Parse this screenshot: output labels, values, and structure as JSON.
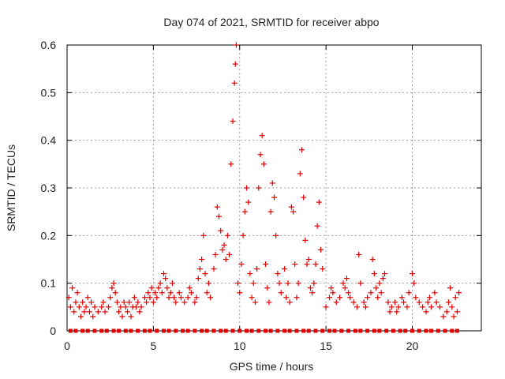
{
  "chart_data": {
    "type": "scatter",
    "title": "Day 074 of 2021, SRMTID for receiver abpo",
    "xlabel": "GPS time / hours",
    "ylabel": "SRMTID / TECUs",
    "xlim": [
      0,
      24
    ],
    "ylim": [
      0,
      0.6
    ],
    "xticks": [
      "0",
      "5",
      "10",
      "15",
      "20"
    ],
    "yticks": [
      "0",
      "0.1",
      "0.2",
      "0.3",
      "0.4",
      "0.5",
      "0.6"
    ],
    "grid": true,
    "marker": "+",
    "color": "#e00000",
    "series": [
      {
        "name": "SRMTID",
        "points": [
          [
            0.1,
            0.07
          ],
          [
            0.2,
            0.05
          ],
          [
            0.3,
            0.09
          ],
          [
            0.4,
            0.04
          ],
          [
            0.5,
            0.06
          ],
          [
            0.6,
            0.08
          ],
          [
            0.7,
            0.05
          ],
          [
            0.8,
            0.03
          ],
          [
            0.9,
            0.06
          ],
          [
            1.0,
            0.04
          ],
          [
            1.1,
            0.05
          ],
          [
            1.2,
            0.07
          ],
          [
            1.3,
            0.04
          ],
          [
            1.4,
            0.06
          ],
          [
            1.5,
            0.03
          ],
          [
            1.6,
            0.05
          ],
          [
            1.8,
            0.04
          ],
          [
            2.0,
            0.05
          ],
          [
            2.1,
            0.06
          ],
          [
            2.2,
            0.04
          ],
          [
            2.4,
            0.05
          ],
          [
            2.5,
            0.07
          ],
          [
            2.6,
            0.09
          ],
          [
            2.7,
            0.1
          ],
          [
            2.8,
            0.08
          ],
          [
            2.9,
            0.06
          ],
          [
            3.0,
            0.04
          ],
          [
            3.1,
            0.05
          ],
          [
            3.2,
            0.03
          ],
          [
            3.3,
            0.06
          ],
          [
            3.4,
            0.05
          ],
          [
            3.5,
            0.04
          ],
          [
            3.6,
            0.06
          ],
          [
            3.7,
            0.03
          ],
          [
            3.8,
            0.05
          ],
          [
            3.9,
            0.07
          ],
          [
            4.0,
            0.05
          ],
          [
            4.1,
            0.06
          ],
          [
            4.2,
            0.04
          ],
          [
            4.3,
            0.05
          ],
          [
            4.5,
            0.07
          ],
          [
            4.6,
            0.06
          ],
          [
            4.7,
            0.08
          ],
          [
            4.8,
            0.07
          ],
          [
            4.9,
            0.09
          ],
          [
            5.0,
            0.06
          ],
          [
            5.1,
            0.08
          ],
          [
            5.2,
            0.07
          ],
          [
            5.3,
            0.09
          ],
          [
            5.4,
            0.1
          ],
          [
            5.5,
            0.08
          ],
          [
            5.6,
            0.12
          ],
          [
            5.7,
            0.11
          ],
          [
            5.8,
            0.09
          ],
          [
            5.9,
            0.07
          ],
          [
            6.0,
            0.08
          ],
          [
            6.1,
            0.1
          ],
          [
            6.2,
            0.07
          ],
          [
            6.3,
            0.06
          ],
          [
            6.5,
            0.08
          ],
          [
            6.6,
            0.07
          ],
          [
            6.8,
            0.06
          ],
          [
            7.0,
            0.07
          ],
          [
            7.1,
            0.09
          ],
          [
            7.2,
            0.08
          ],
          [
            7.4,
            0.06
          ],
          [
            7.5,
            0.07
          ],
          [
            7.6,
            0.11
          ],
          [
            7.7,
            0.13
          ],
          [
            7.8,
            0.15
          ],
          [
            7.9,
            0.2
          ],
          [
            8.0,
            0.12
          ],
          [
            8.1,
            0.08
          ],
          [
            8.2,
            0.1
          ],
          [
            8.3,
            0.07
          ],
          [
            8.5,
            0.13
          ],
          [
            8.6,
            0.16
          ],
          [
            8.7,
            0.26
          ],
          [
            8.8,
            0.24
          ],
          [
            8.9,
            0.21
          ],
          [
            9.0,
            0.17
          ],
          [
            9.1,
            0.18
          ],
          [
            9.2,
            0.15
          ],
          [
            9.3,
            0.2
          ],
          [
            9.4,
            0.16
          ],
          [
            9.5,
            0.35
          ],
          [
            9.6,
            0.44
          ],
          [
            9.7,
            0.52
          ],
          [
            9.75,
            0.56
          ],
          [
            9.8,
            0.6
          ],
          [
            9.9,
            0.1
          ],
          [
            10.0,
            0.08
          ],
          [
            10.1,
            0.14
          ],
          [
            10.2,
            0.2
          ],
          [
            10.3,
            0.25
          ],
          [
            10.4,
            0.3
          ],
          [
            10.5,
            0.27
          ],
          [
            10.6,
            0.12
          ],
          [
            10.7,
            0.07
          ],
          [
            10.8,
            0.1
          ],
          [
            10.9,
            0.06
          ],
          [
            11.0,
            0.13
          ],
          [
            11.1,
            0.3
          ],
          [
            11.2,
            0.37
          ],
          [
            11.3,
            0.41
          ],
          [
            11.4,
            0.35
          ],
          [
            11.5,
            0.14
          ],
          [
            11.6,
            0.09
          ],
          [
            11.7,
            0.06
          ],
          [
            11.8,
            0.25
          ],
          [
            11.9,
            0.31
          ],
          [
            12.0,
            0.28
          ],
          [
            12.1,
            0.2
          ],
          [
            12.2,
            0.12
          ],
          [
            12.3,
            0.1
          ],
          [
            12.4,
            0.08
          ],
          [
            12.6,
            0.13
          ],
          [
            12.7,
            0.07
          ],
          [
            12.8,
            0.1
          ],
          [
            12.9,
            0.06
          ],
          [
            13.0,
            0.26
          ],
          [
            13.1,
            0.25
          ],
          [
            13.2,
            0.14
          ],
          [
            13.3,
            0.07
          ],
          [
            13.4,
            0.1
          ],
          [
            13.5,
            0.33
          ],
          [
            13.6,
            0.38
          ],
          [
            13.7,
            0.28
          ],
          [
            13.8,
            0.19
          ],
          [
            13.9,
            0.14
          ],
          [
            14.0,
            0.15
          ],
          [
            14.1,
            0.09
          ],
          [
            14.2,
            0.08
          ],
          [
            14.3,
            0.1
          ],
          [
            14.4,
            0.14
          ],
          [
            14.5,
            0.22
          ],
          [
            14.6,
            0.27
          ],
          [
            14.7,
            0.17
          ],
          [
            14.8,
            0.13
          ],
          [
            15.0,
            0.05
          ],
          [
            15.2,
            0.07
          ],
          [
            15.3,
            0.09
          ],
          [
            15.4,
            0.08
          ],
          [
            15.6,
            0.06
          ],
          [
            15.8,
            0.07
          ],
          [
            16.0,
            0.1
          ],
          [
            16.1,
            0.09
          ],
          [
            16.2,
            0.11
          ],
          [
            16.3,
            0.08
          ],
          [
            16.4,
            0.07
          ],
          [
            16.6,
            0.06
          ],
          [
            16.8,
            0.05
          ],
          [
            16.9,
            0.16
          ],
          [
            17.0,
            0.1
          ],
          [
            17.2,
            0.06
          ],
          [
            17.3,
            0.05
          ],
          [
            17.4,
            0.07
          ],
          [
            17.6,
            0.08
          ],
          [
            17.7,
            0.15
          ],
          [
            17.8,
            0.12
          ],
          [
            17.9,
            0.09
          ],
          [
            18.0,
            0.07
          ],
          [
            18.1,
            0.1
          ],
          [
            18.2,
            0.08
          ],
          [
            18.3,
            0.11
          ],
          [
            18.4,
            0.12
          ],
          [
            18.6,
            0.06
          ],
          [
            18.7,
            0.04
          ],
          [
            18.8,
            0.05
          ],
          [
            19.0,
            0.06
          ],
          [
            19.1,
            0.04
          ],
          [
            19.2,
            0.05
          ],
          [
            19.4,
            0.07
          ],
          [
            19.5,
            0.06
          ],
          [
            19.7,
            0.05
          ],
          [
            19.8,
            0.08
          ],
          [
            20.0,
            0.12
          ],
          [
            20.1,
            0.1
          ],
          [
            20.2,
            0.07
          ],
          [
            20.4,
            0.06
          ],
          [
            20.6,
            0.05
          ],
          [
            20.8,
            0.04
          ],
          [
            20.9,
            0.06
          ],
          [
            21.0,
            0.07
          ],
          [
            21.1,
            0.05
          ],
          [
            21.3,
            0.08
          ],
          [
            21.4,
            0.06
          ],
          [
            21.6,
            0.05
          ],
          [
            21.8,
            0.03
          ],
          [
            22.0,
            0.04
          ],
          [
            22.1,
            0.06
          ],
          [
            22.2,
            0.09
          ],
          [
            22.3,
            0.05
          ],
          [
            22.4,
            0.03
          ],
          [
            22.5,
            0.07
          ],
          [
            22.6,
            0.04
          ],
          [
            22.7,
            0.08
          ]
        ]
      },
      {
        "name": "zero-level",
        "x_values": [
          0.2,
          0.5,
          0.9,
          1.2,
          1.6,
          2.0,
          2.3,
          2.7,
          3.0,
          3.4,
          3.7,
          4.1,
          4.5,
          4.8,
          5.2,
          5.6,
          5.9,
          6.3,
          6.7,
          7.0,
          7.4,
          7.8,
          8.1,
          8.5,
          8.9,
          9.2,
          9.6,
          10.0,
          10.4,
          10.7,
          11.1,
          11.5,
          11.8,
          12.2,
          12.6,
          12.9,
          13.3,
          13.7,
          14.0,
          14.4,
          14.8,
          15.2,
          15.5,
          15.9,
          16.3,
          16.7,
          17.0,
          17.4,
          17.8,
          18.1,
          18.5,
          18.9,
          19.3,
          19.6,
          20.0,
          20.4,
          20.8,
          21.1,
          21.5,
          21.9,
          22.3,
          22.6
        ],
        "y_value": 0
      }
    ]
  }
}
